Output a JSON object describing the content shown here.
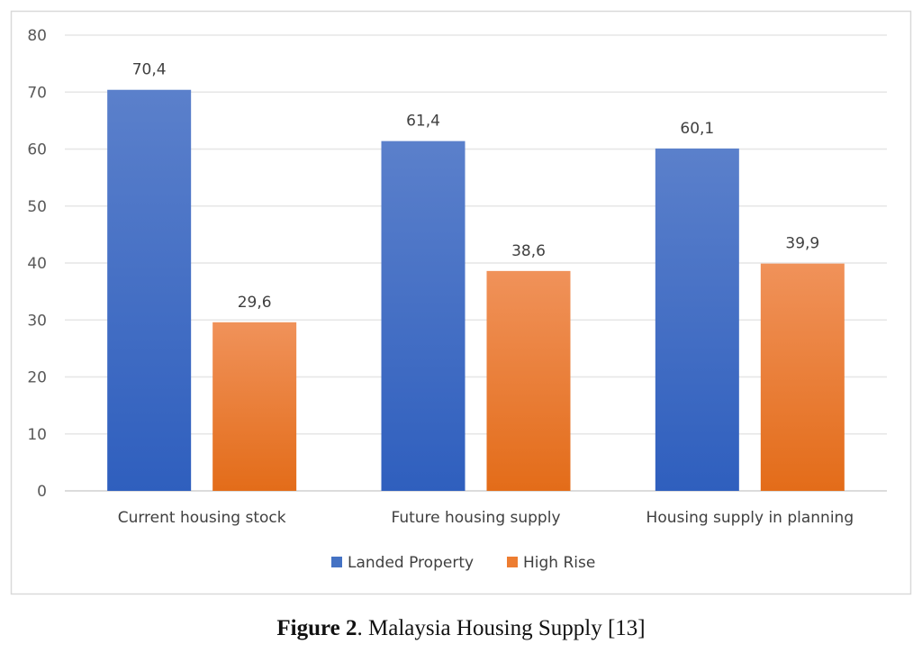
{
  "chart_data": {
    "type": "bar",
    "categories": [
      "Current housing stock",
      "Future housing supply",
      "Housing supply in planning"
    ],
    "series": [
      {
        "name": "Landed Property",
        "values": [
          70.4,
          61.4,
          60.1
        ],
        "labels": [
          "70,4",
          "61,4",
          "60,1"
        ],
        "color": "#4472c4"
      },
      {
        "name": "High Rise",
        "values": [
          29.6,
          38.6,
          39.9
        ],
        "labels": [
          "29,6",
          "38,6",
          "39,9"
        ],
        "color": "#ed7d31"
      }
    ],
    "ylim": [
      0,
      80
    ],
    "yticks": [
      "0",
      "10",
      "20",
      "30",
      "40",
      "50",
      "60",
      "70",
      "80"
    ],
    "grid": true,
    "legend": "bottom"
  },
  "caption": {
    "label": "Figure 2",
    "text": ". Malaysia Housing Supply [13]"
  }
}
